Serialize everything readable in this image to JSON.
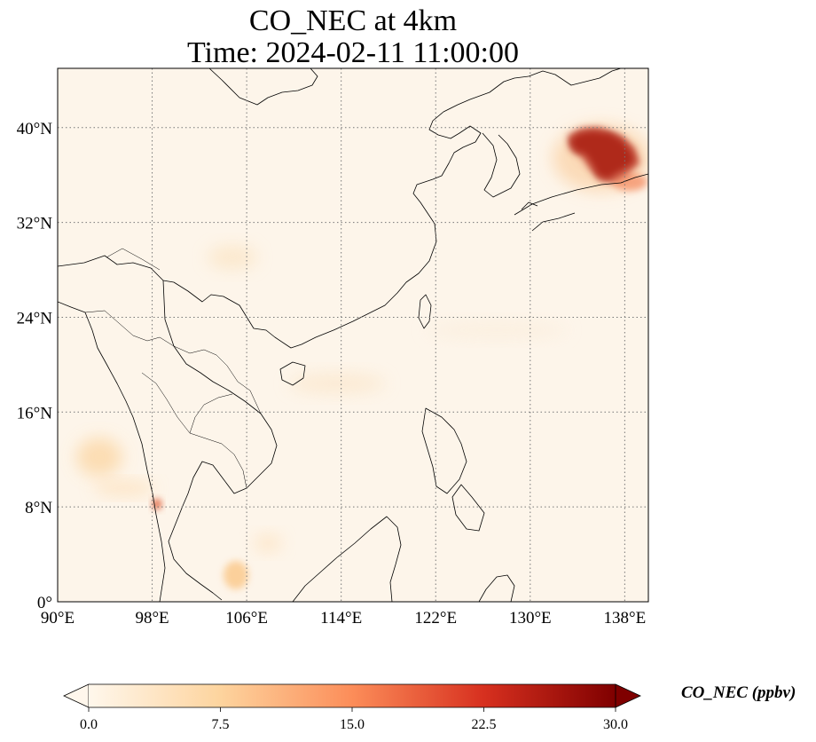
{
  "title": {
    "line1": "CO_NEC at 4km",
    "line2": "Time: 2024-02-11 11:00:00"
  },
  "map": {
    "lon_range": [
      90,
      140
    ],
    "lat_range": [
      0,
      45
    ],
    "x_ticks": [
      {
        "lon": 90,
        "label": "90°E"
      },
      {
        "lon": 98,
        "label": "98°E"
      },
      {
        "lon": 106,
        "label": "106°E"
      },
      {
        "lon": 114,
        "label": "114°E"
      },
      {
        "lon": 122,
        "label": "122°E"
      },
      {
        "lon": 130,
        "label": "130°E"
      },
      {
        "lon": 138,
        "label": "138°E"
      }
    ],
    "y_ticks": [
      {
        "lat": 0,
        "label": "0°"
      },
      {
        "lat": 8,
        "label": "8°N"
      },
      {
        "lat": 16,
        "label": "16°N"
      },
      {
        "lat": 24,
        "label": "24°N"
      },
      {
        "lat": 32,
        "label": "32°N"
      },
      {
        "lat": 40,
        "label": "40°N"
      }
    ],
    "gridlines": "dotted",
    "field_background_color": "#fdf5ea",
    "plumes": [
      {
        "area": "Sea of Japan plume",
        "lon": 136.5,
        "lat": 38.5,
        "level_ppbv": 30
      },
      {
        "area": "Myanmar coast hotspot",
        "lon": 98.3,
        "lat": 8.5,
        "level_ppbv": 18
      },
      {
        "area": "Andaman Sea patch",
        "lon": 93.5,
        "lat": 12,
        "level_ppbv": 7
      },
      {
        "area": "Mekong delta patch",
        "lon": 105.5,
        "lat": 2.3,
        "level_ppbv": 8
      },
      {
        "area": "South China patch",
        "lon": 104.5,
        "lat": 29,
        "level_ppbv": 4
      }
    ]
  },
  "colorbar": {
    "min": 0,
    "max": 30,
    "extend": "both",
    "colormap": "OrRd",
    "colors": [
      "#fff7ec",
      "#fdd49e",
      "#fc8d59",
      "#d7301f",
      "#7f0000"
    ],
    "tick_labels": [
      "0.0",
      "7.5",
      "15.0",
      "22.5",
      "30.0"
    ],
    "label": "CO_NEC (ppbv)"
  }
}
